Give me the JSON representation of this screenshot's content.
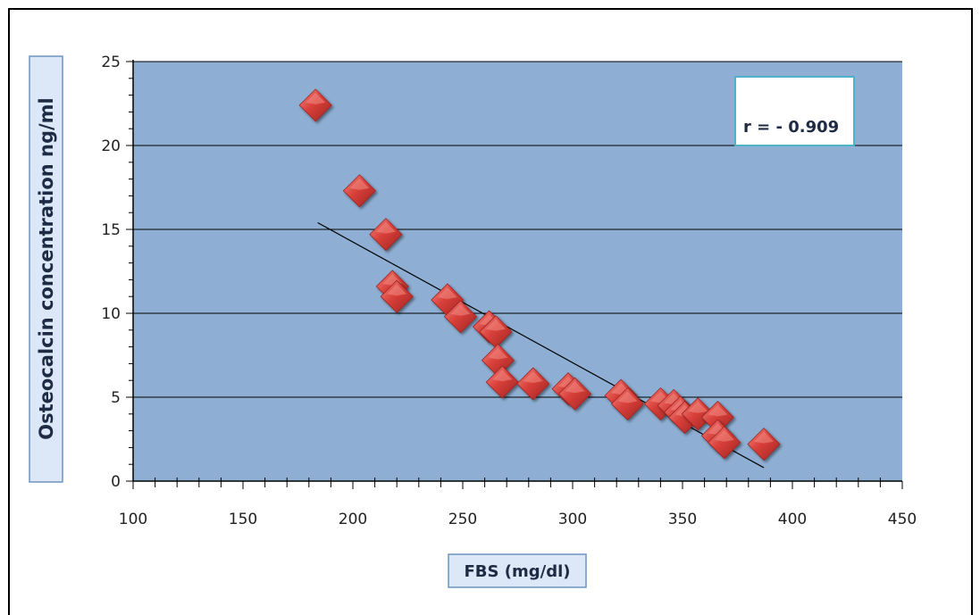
{
  "colors": {
    "plot_background": "#8eafd3",
    "marker_fill": "#d9403a",
    "marker_light": "#f08a84",
    "marker_dark": "#9f2420",
    "label_box_fill": "#dce8f7",
    "label_box_border": "#6f93c0",
    "annotation_border": "#4fb3c8"
  },
  "chart_data": {
    "type": "scatter",
    "title": "",
    "xlabel": "FBS (mg/dl)",
    "ylabel": "Osteocalcin concentration  ng/ml",
    "xlim": [
      100,
      450
    ],
    "ylim": [
      0,
      25
    ],
    "x_ticks": [
      "100",
      "150",
      "200",
      "250",
      "300",
      "350",
      "400",
      "450"
    ],
    "y_ticks": [
      "0",
      "5",
      "10",
      "15",
      "20",
      "25"
    ],
    "grid": "horizontal",
    "annotation": "r = -  0.909",
    "marker": "diamond",
    "points": [
      {
        "x": 183,
        "y": 22.4
      },
      {
        "x": 203,
        "y": 17.3
      },
      {
        "x": 215,
        "y": 14.7
      },
      {
        "x": 218,
        "y": 11.6
      },
      {
        "x": 220,
        "y": 11.0
      },
      {
        "x": 243,
        "y": 10.8
      },
      {
        "x": 249,
        "y": 9.8
      },
      {
        "x": 262,
        "y": 9.2
      },
      {
        "x": 265,
        "y": 8.9
      },
      {
        "x": 266,
        "y": 7.2
      },
      {
        "x": 268,
        "y": 5.9
      },
      {
        "x": 282,
        "y": 5.8
      },
      {
        "x": 298,
        "y": 5.5
      },
      {
        "x": 301,
        "y": 5.2
      },
      {
        "x": 322,
        "y": 5.1
      },
      {
        "x": 325,
        "y": 4.6
      },
      {
        "x": 340,
        "y": 4.6
      },
      {
        "x": 346,
        "y": 4.5
      },
      {
        "x": 349,
        "y": 4.1
      },
      {
        "x": 351,
        "y": 3.8
      },
      {
        "x": 357,
        "y": 4.0
      },
      {
        "x": 366,
        "y": 3.8
      },
      {
        "x": 366,
        "y": 2.7
      },
      {
        "x": 369,
        "y": 2.3
      },
      {
        "x": 387,
        "y": 2.2
      }
    ],
    "trendline": {
      "x": [
        184,
        387
      ],
      "y": [
        15.4,
        0.8
      ]
    }
  }
}
